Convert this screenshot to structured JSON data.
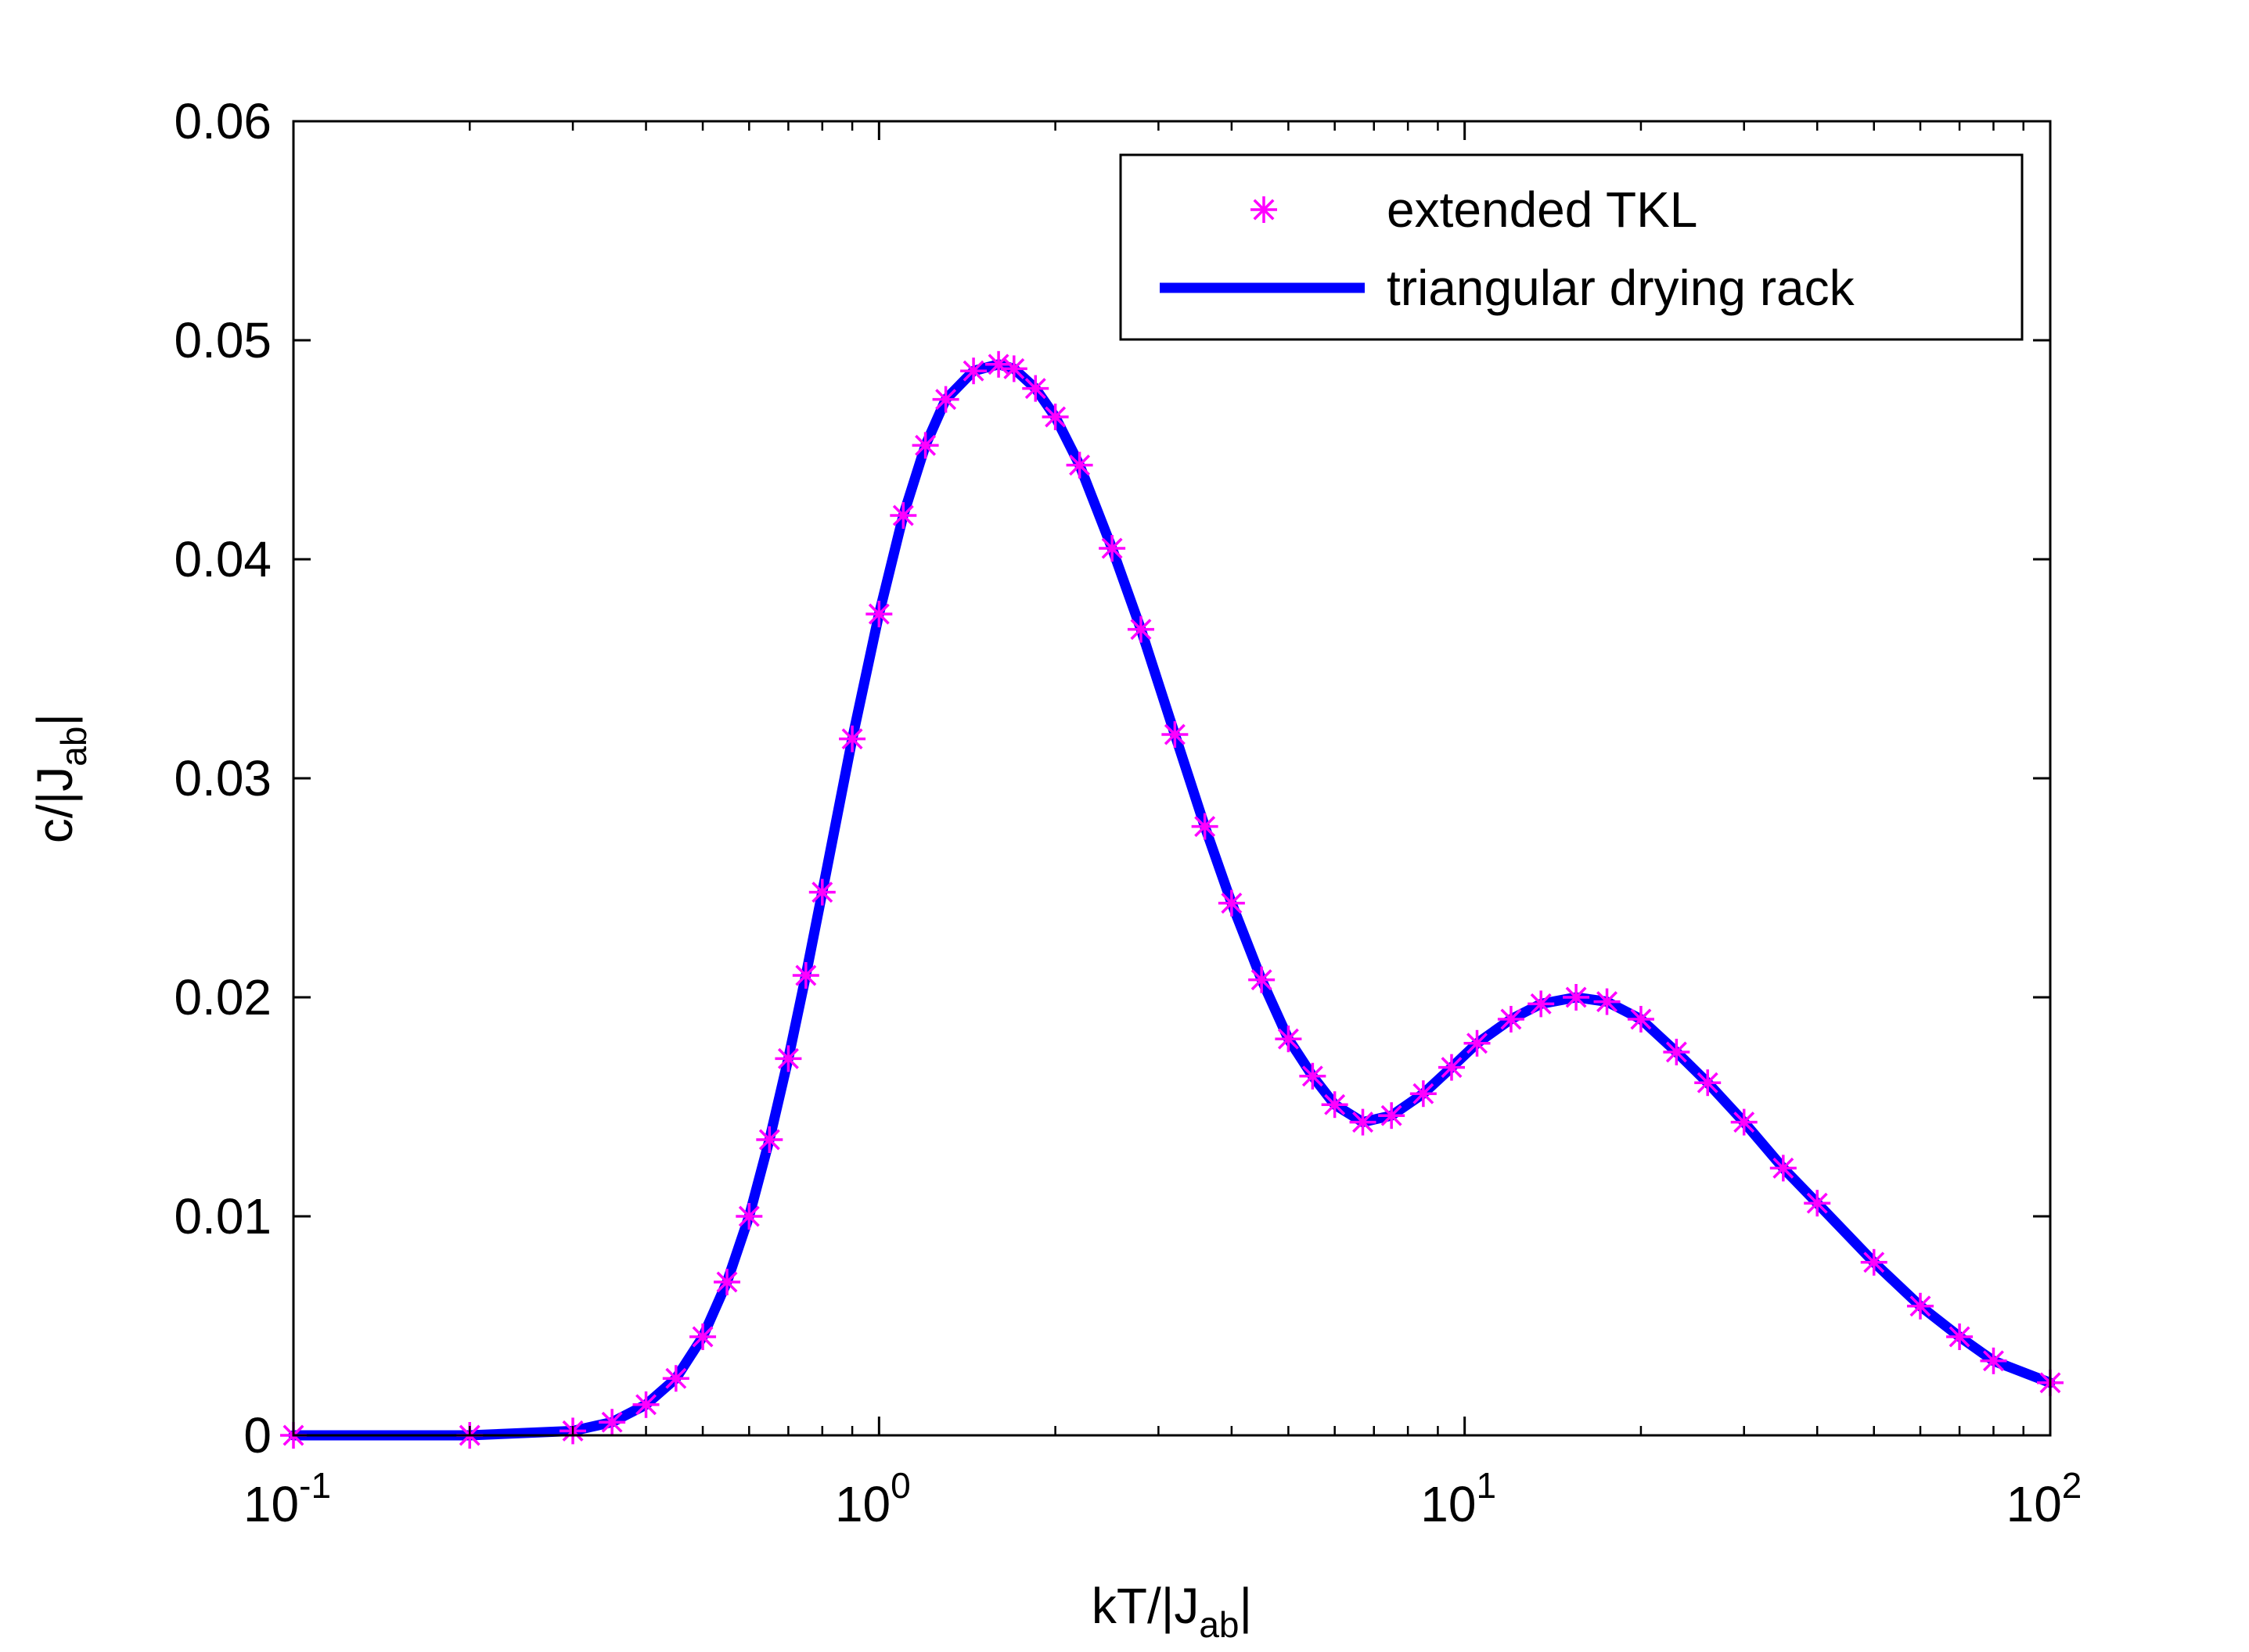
{
  "chart_data": {
    "type": "line",
    "title": "",
    "x_scale": "log",
    "xlim": [
      0.1,
      100
    ],
    "ylim": [
      0,
      0.06
    ],
    "grid": false,
    "legend_position": "top-right",
    "xlabel": {
      "base": "kT/|J",
      "sub": "ab",
      "tail": "|"
    },
    "ylabel": {
      "base": "c/|J",
      "sub": "ab",
      "tail": "|"
    },
    "x_ticks": [
      {
        "value": 0.1,
        "base": "10",
        "exp": "-1"
      },
      {
        "value": 1,
        "base": "10",
        "exp": "0"
      },
      {
        "value": 10,
        "base": "10",
        "exp": "1"
      },
      {
        "value": 100,
        "base": "10",
        "exp": "2"
      }
    ],
    "y_ticks": [
      {
        "value": 0,
        "label": "0"
      },
      {
        "value": 0.01,
        "label": "0.01"
      },
      {
        "value": 0.02,
        "label": "0.02"
      },
      {
        "value": 0.03,
        "label": "0.03"
      },
      {
        "value": 0.04,
        "label": "0.04"
      },
      {
        "value": 0.05,
        "label": "0.05"
      },
      {
        "value": 0.06,
        "label": "0.06"
      }
    ],
    "series": [
      {
        "name": "extended TKL",
        "style": "markers",
        "marker": "asterisk",
        "color": "#ff00ff",
        "x": [
          0.1,
          0.2,
          0.3,
          0.35,
          0.4,
          0.45,
          0.5,
          0.55,
          0.6,
          0.65,
          0.7,
          0.75,
          0.8,
          0.9,
          1.0,
          1.1,
          1.2,
          1.3,
          1.45,
          1.6,
          1.7,
          1.85,
          2.0,
          2.2,
          2.5,
          2.8,
          3.2,
          3.6,
          4.0,
          4.5,
          5.0,
          5.5,
          6.0,
          6.7,
          7.5,
          8.5,
          9.5,
          10.5,
          12.0,
          13.5,
          15.5,
          17.5,
          20.0,
          23.0,
          26.0,
          30.0,
          35.0,
          40.0,
          50.0,
          60.0,
          70.0,
          80.0,
          100.0
        ],
        "y": [
          0.0,
          0.0,
          0.0002,
          0.0006,
          0.0014,
          0.0026,
          0.0045,
          0.007,
          0.01,
          0.0135,
          0.0172,
          0.021,
          0.0248,
          0.0318,
          0.0375,
          0.042,
          0.0452,
          0.0473,
          0.0486,
          0.0489,
          0.0487,
          0.0478,
          0.0465,
          0.0443,
          0.0405,
          0.0368,
          0.032,
          0.0278,
          0.0243,
          0.0208,
          0.0181,
          0.0164,
          0.0151,
          0.0143,
          0.0146,
          0.0156,
          0.0168,
          0.0179,
          0.019,
          0.0197,
          0.02,
          0.0198,
          0.019,
          0.0175,
          0.0161,
          0.0143,
          0.0122,
          0.0106,
          0.0079,
          0.0059,
          0.0045,
          0.0034,
          0.0024
        ]
      },
      {
        "name": "triangular drying rack",
        "style": "line",
        "color": "#0000ff",
        "x": [
          0.1,
          0.2,
          0.3,
          0.35,
          0.4,
          0.45,
          0.5,
          0.55,
          0.6,
          0.65,
          0.7,
          0.75,
          0.8,
          0.9,
          1.0,
          1.1,
          1.2,
          1.3,
          1.45,
          1.6,
          1.7,
          1.85,
          2.0,
          2.2,
          2.5,
          2.8,
          3.2,
          3.6,
          4.0,
          4.5,
          5.0,
          5.5,
          6.0,
          6.7,
          7.5,
          8.5,
          9.5,
          10.5,
          12.0,
          13.5,
          15.5,
          17.5,
          20.0,
          23.0,
          26.0,
          30.0,
          35.0,
          40.0,
          50.0,
          60.0,
          70.0,
          80.0,
          100.0
        ],
        "y": [
          0.0,
          0.0,
          0.0002,
          0.0006,
          0.0014,
          0.0026,
          0.0045,
          0.007,
          0.01,
          0.0135,
          0.0172,
          0.021,
          0.0248,
          0.0318,
          0.0375,
          0.042,
          0.0452,
          0.0473,
          0.0486,
          0.0489,
          0.0487,
          0.0478,
          0.0465,
          0.0443,
          0.0405,
          0.0368,
          0.032,
          0.0278,
          0.0243,
          0.0208,
          0.0181,
          0.0164,
          0.0151,
          0.0143,
          0.0146,
          0.0156,
          0.0168,
          0.0179,
          0.019,
          0.0197,
          0.02,
          0.0198,
          0.019,
          0.0175,
          0.0161,
          0.0143,
          0.0122,
          0.0106,
          0.0079,
          0.0059,
          0.0045,
          0.0034,
          0.0024
        ]
      }
    ],
    "legend": [
      {
        "label": "extended TKL",
        "style": "markers"
      },
      {
        "label": "triangular drying rack",
        "style": "line"
      }
    ]
  }
}
